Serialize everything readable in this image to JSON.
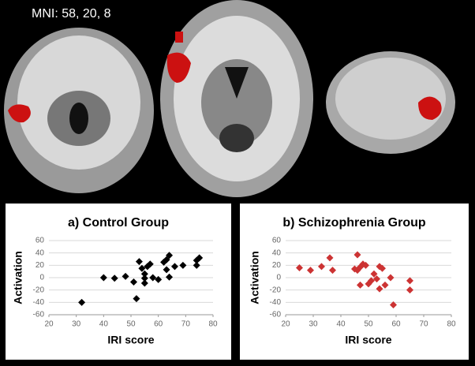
{
  "image_label": "MNI: 58, 20, 8",
  "chart_data": [
    {
      "type": "scatter",
      "title": "a) Control Group",
      "xlabel": "IRI score",
      "ylabel": "Activation",
      "color": "#000000",
      "x": [
        32,
        40,
        44,
        48,
        51,
        52,
        53,
        54,
        55,
        55,
        55,
        56,
        57,
        58,
        60,
        62,
        63,
        64,
        64,
        63,
        66,
        69,
        74,
        74,
        75
      ],
      "values": [
        -40,
        0,
        -1,
        2,
        -7,
        -34,
        26,
        15,
        6,
        -1,
        -9,
        18,
        22,
        0,
        -3,
        25,
        13,
        1,
        36,
        29,
        18,
        20,
        20,
        28,
        32
      ],
      "xlim": [
        20,
        80
      ],
      "xticks": [
        20,
        30,
        40,
        50,
        60,
        70,
        80
      ],
      "ylim": [
        -60,
        60
      ],
      "yticks": [
        -60,
        -40,
        -20,
        0,
        20,
        40,
        60
      ],
      "grid": true
    },
    {
      "type": "scatter",
      "title": "b) Schizophrenia Group",
      "xlabel": "IRI score",
      "ylabel": "Activation",
      "color": "#cc3333",
      "x": [
        25,
        29,
        33,
        36,
        37,
        46,
        46,
        47,
        47,
        48,
        49,
        50,
        51,
        52,
        53,
        54,
        54,
        55,
        56,
        58,
        59,
        65,
        65,
        45
      ],
      "values": [
        16,
        12,
        18,
        32,
        12,
        37,
        12,
        -12,
        17,
        22,
        20,
        -10,
        -5,
        6,
        -2,
        18,
        -18,
        15,
        -12,
        0,
        -44,
        -5,
        -20,
        14
      ],
      "xlim": [
        20,
        80
      ],
      "xticks": [
        20,
        30,
        40,
        50,
        60,
        70,
        80
      ],
      "ylim": [
        -60,
        60
      ],
      "yticks": [
        -60,
        -40,
        -20,
        0,
        20,
        40,
        60
      ],
      "grid": true
    }
  ]
}
